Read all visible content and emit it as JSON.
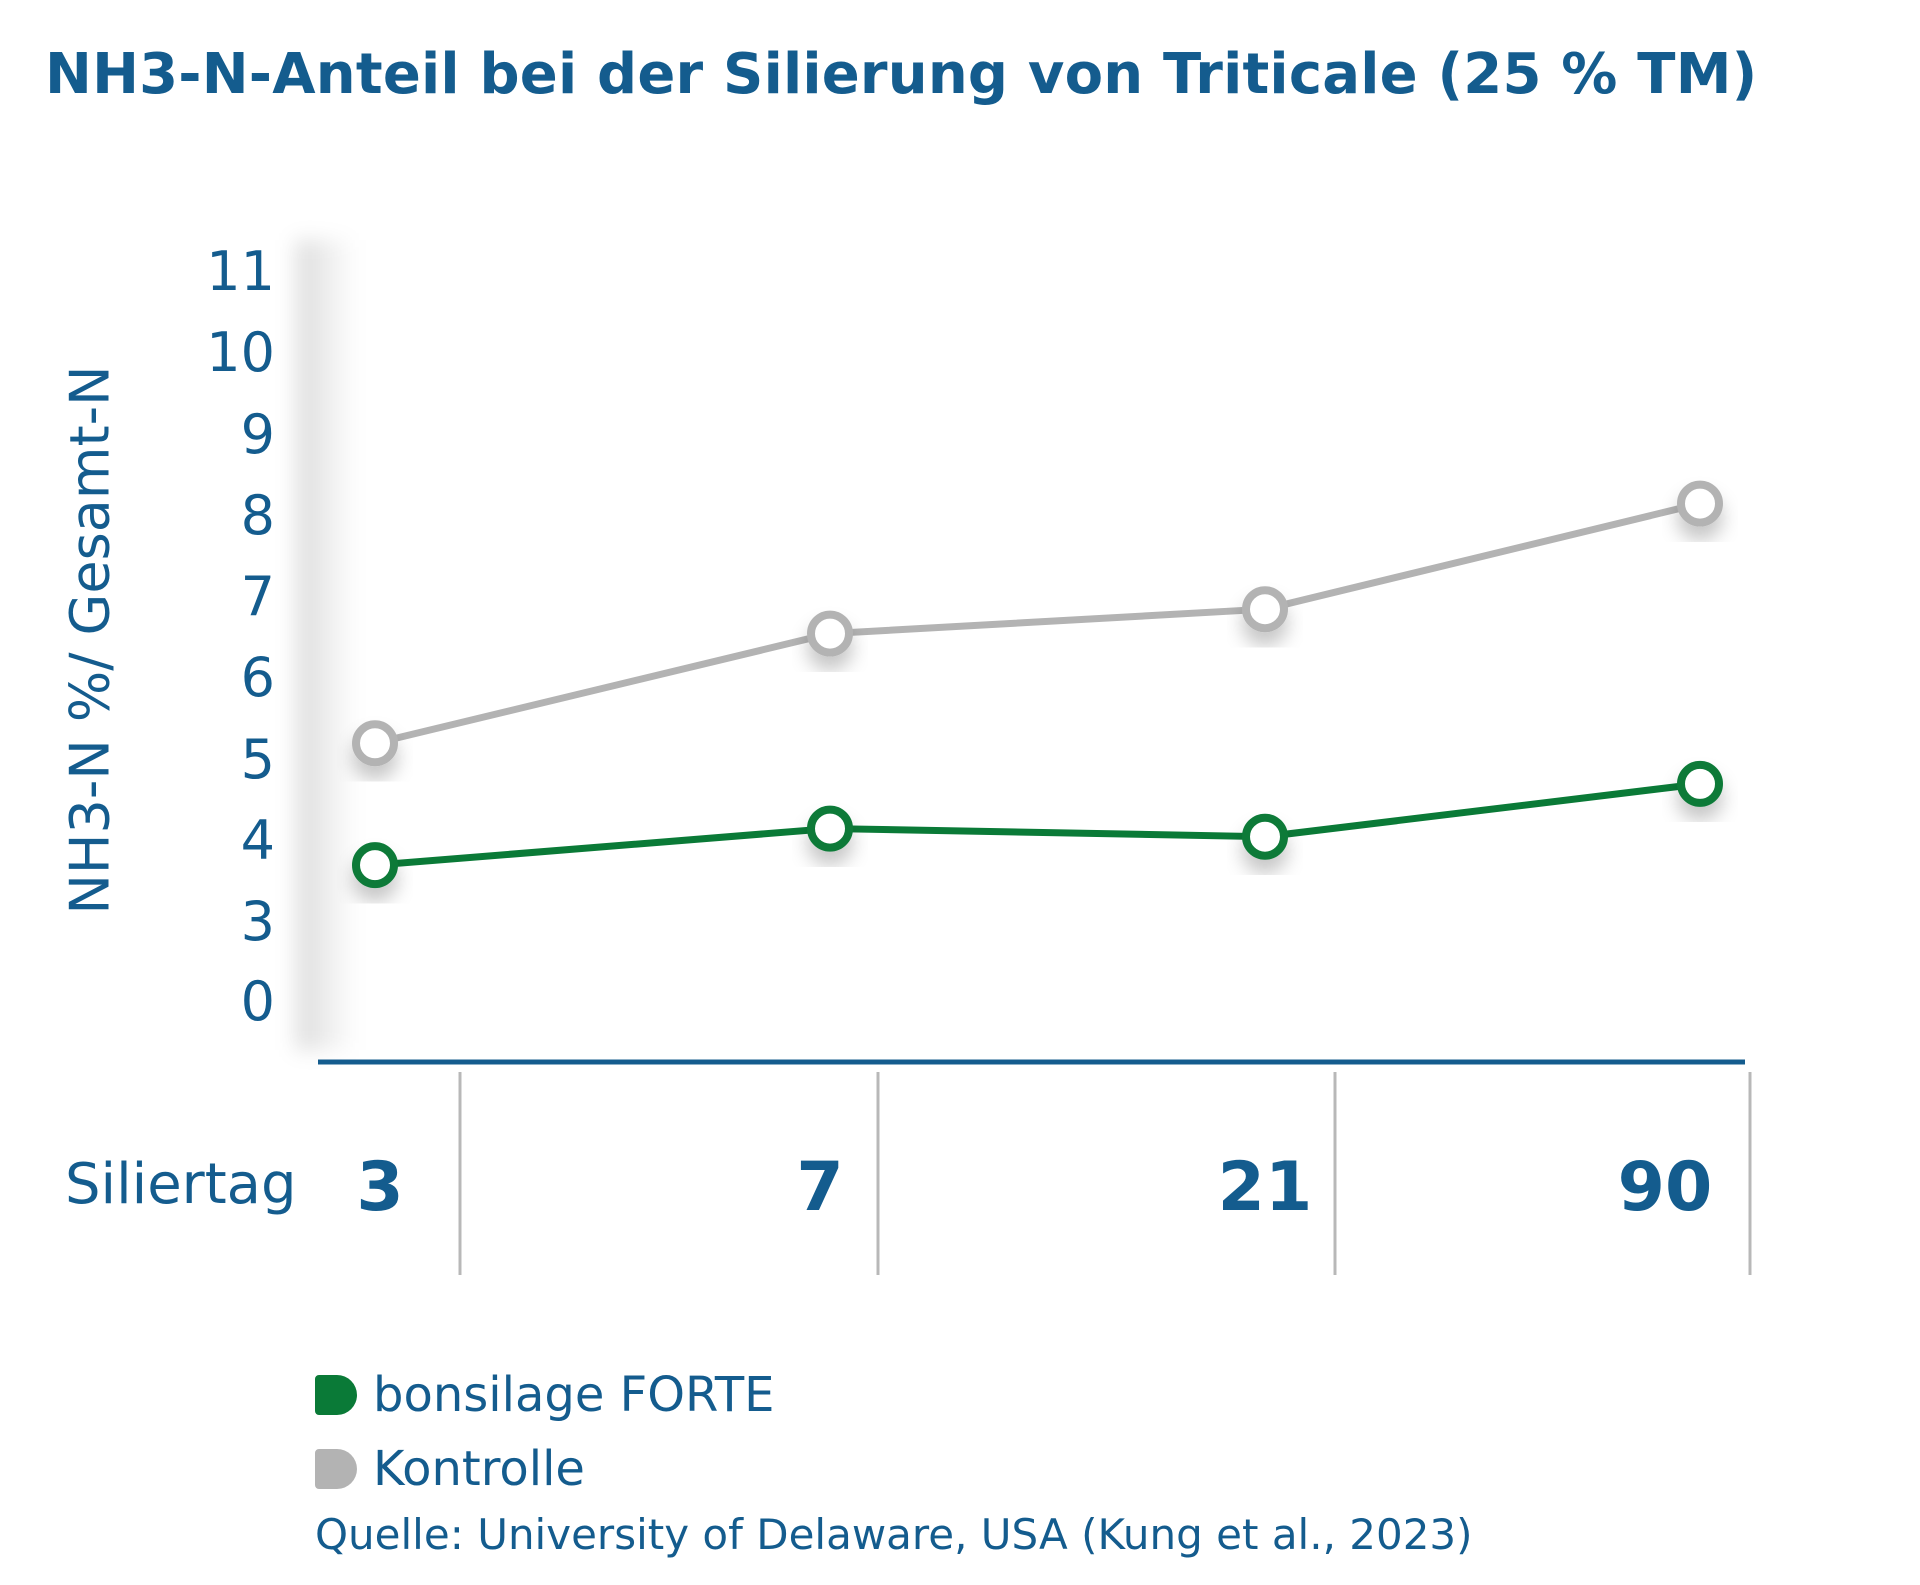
{
  "chart_data": {
    "type": "line",
    "title": "NH3-N-Anteil bei der Silierung von Triticale (25 % TM)",
    "ylabel": "NH3-N %/ Gesamt-N",
    "xlabel": "Siliertag",
    "categories": [
      "3",
      "7",
      "21",
      "90"
    ],
    "yticks": [
      "11",
      "10",
      "9",
      "8",
      "7",
      "6",
      "5",
      "4",
      "3",
      "0"
    ],
    "series": [
      {
        "name": "bonsilage FORTE",
        "color": "#0a7a37",
        "values": [
          3.7,
          4.15,
          4.05,
          4.7
        ]
      },
      {
        "name": "Kontrolle",
        "color": "#b3b3b3",
        "values": [
          5.2,
          6.55,
          6.85,
          8.15
        ]
      }
    ],
    "source": "Quelle: University of Delaware, USA (Kung et al., 2023)",
    "axis_color": "#145c8e",
    "grid": false,
    "legend_position": "bottom-left"
  }
}
